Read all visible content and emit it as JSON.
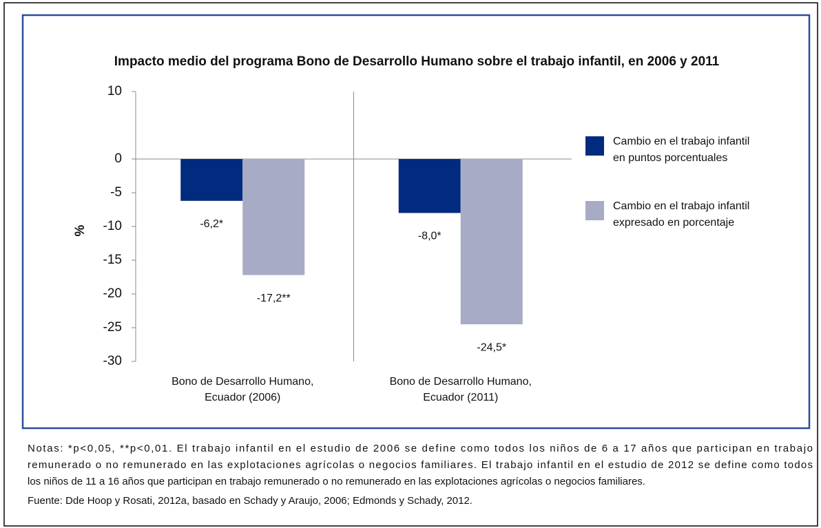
{
  "chart_data": {
    "type": "bar",
    "title": "Impacto medio del programa Bono de Desarrollo Humano sobre el trabajo infantil, en 2006 y 2011",
    "ylabel": "%",
    "categories": [
      [
        "Bono de Desarrollo Humano,",
        "Ecuador (2006)"
      ],
      [
        "Bono de Desarrollo Humano,",
        "Ecuador (2011)"
      ]
    ],
    "series": [
      {
        "name": [
          "Cambio en el trabajo infantil",
          "en puntos porcentuales"
        ],
        "color": "#002b7f",
        "values": [
          -6.2,
          -8.0
        ],
        "value_labels": [
          "-6,2*",
          "-8,0*"
        ]
      },
      {
        "name": [
          "Cambio en el trabajo infantil",
          "expresado en porcentaje"
        ],
        "color": "#a7abc6",
        "values": [
          -17.2,
          -24.5
        ],
        "value_labels": [
          "-17,2**",
          "-24,5*"
        ]
      }
    ],
    "ylim": [
      -30,
      10
    ],
    "yticks": [
      10,
      0,
      -5,
      -10,
      -15,
      -20,
      -25,
      -30
    ],
    "notes": [
      "Notas: *p<0,05, **p<0,01. El trabajo infantil en el estudio de 2006 se define como todos los niños de 6 a 17 años que participan en trabajo",
      "remunerado o no remunerado en las explotaciones agrícolas o negocios familiares. El trabajo infantil en el estudio de 2012 se define como todos",
      "los niños de 11 a 16 años que participan en trabajo remunerado o no remunerado en las explotaciones agrícolas o negocios familiares.",
      "Fuente: Dde Hoop y Rosati, 2012a, basado en Schady y Araujo, 2006; Edmonds y Schady, 2012."
    ]
  }
}
